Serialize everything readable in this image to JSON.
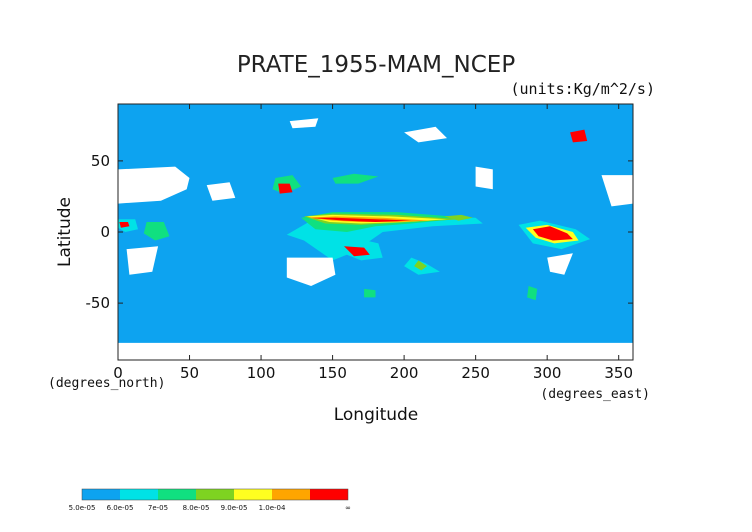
{
  "chart_data": {
    "type": "heatmap",
    "title": "PRATE_1955-MAM_NCEP",
    "units": "(units:Kg/m^2/s)",
    "xlabel": "Longitude",
    "ylabel": "Latitude",
    "x_units_note": "(degrees_east)",
    "y_units_note": "(degrees_north)",
    "xlim": [
      0,
      360
    ],
    "ylim": [
      -90,
      90
    ],
    "x_ticks": [
      0,
      50,
      100,
      150,
      200,
      250,
      300,
      350
    ],
    "y_ticks": [
      50,
      0,
      -50
    ],
    "grid": false,
    "background_color": "#ffffff",
    "levels": [
      {
        "label": "5.0e-05",
        "color": "#0da3f0"
      },
      {
        "label": "6.0e-05",
        "color": "#00e2e6"
      },
      {
        "label": "7e-05",
        "color": "#10e080"
      },
      {
        "label": "8.0e-05",
        "color": "#7ed321"
      },
      {
        "label": "9.0e-05",
        "color": "#ffff20"
      },
      {
        "label": "1.0e-04",
        "color": "#ffa500"
      },
      {
        "label": "∞",
        "color": "#ff0000"
      }
    ],
    "regions": [
      {
        "level": 0,
        "polygon": [
          [
            0,
            90
          ],
          [
            360,
            90
          ],
          [
            360,
            -90
          ],
          [
            0,
            -90
          ]
        ]
      },
      {
        "level": 1,
        "polygon": [
          [
            118,
            -2
          ],
          [
            135,
            8
          ],
          [
            160,
            10
          ],
          [
            200,
            12
          ],
          [
            250,
            10
          ],
          [
            255,
            6
          ],
          [
            220,
            4
          ],
          [
            185,
            0
          ],
          [
            165,
            -14
          ],
          [
            150,
            -20
          ],
          [
            130,
            -6
          ]
        ]
      },
      {
        "level": 2,
        "polygon": [
          [
            128,
            10
          ],
          [
            150,
            14
          ],
          [
            195,
            14
          ],
          [
            245,
            10
          ],
          [
            205,
            6
          ],
          [
            180,
            4
          ],
          [
            160,
            0
          ],
          [
            138,
            2
          ]
        ]
      },
      {
        "level": 3,
        "polygon": [
          [
            130,
            11
          ],
          [
            150,
            13
          ],
          [
            195,
            12
          ],
          [
            240,
            9
          ],
          [
            205,
            7
          ],
          [
            170,
            5
          ],
          [
            145,
            6
          ]
        ]
      },
      {
        "level": 4,
        "polygon": [
          [
            132,
            11
          ],
          [
            150,
            12
          ],
          [
            190,
            11
          ],
          [
            230,
            9
          ],
          [
            200,
            7
          ],
          [
            170,
            6
          ],
          [
            148,
            7
          ]
        ]
      },
      {
        "level": 5,
        "polygon": [
          [
            133,
            10
          ],
          [
            152,
            11
          ],
          [
            185,
            10
          ],
          [
            218,
            8
          ],
          [
            195,
            7
          ],
          [
            168,
            7
          ],
          [
            150,
            8
          ]
        ]
      },
      {
        "level": 6,
        "polygon": [
          [
            134,
            10
          ],
          [
            152,
            10
          ],
          [
            180,
            9
          ],
          [
            205,
            8
          ],
          [
            180,
            7
          ],
          [
            158,
            8
          ]
        ]
      },
      {
        "level": 1,
        "polygon": [
          [
            148,
            -8
          ],
          [
            165,
            -4
          ],
          [
            182,
            -8
          ],
          [
            185,
            -18
          ],
          [
            170,
            -20
          ],
          [
            155,
            -14
          ]
        ]
      },
      {
        "level": 6,
        "polygon": [
          [
            158,
            -10
          ],
          [
            172,
            -11
          ],
          [
            176,
            -16
          ],
          [
            165,
            -17
          ]
        ]
      },
      {
        "level": 1,
        "polygon": [
          [
            205,
            -18
          ],
          [
            215,
            -22
          ],
          [
            225,
            -28
          ],
          [
            210,
            -30
          ],
          [
            200,
            -24
          ]
        ]
      },
      {
        "level": 3,
        "polygon": [
          [
            210,
            -20
          ],
          [
            216,
            -24
          ],
          [
            212,
            -27
          ],
          [
            207,
            -24
          ]
        ]
      },
      {
        "level": 1,
        "polygon": [
          [
            280,
            5
          ],
          [
            295,
            8
          ],
          [
            320,
            2
          ],
          [
            330,
            -5
          ],
          [
            310,
            -12
          ],
          [
            290,
            -8
          ]
        ]
      },
      {
        "level": 4,
        "polygon": [
          [
            285,
            3
          ],
          [
            300,
            5
          ],
          [
            318,
            0
          ],
          [
            322,
            -6
          ],
          [
            305,
            -8
          ],
          [
            292,
            -4
          ]
        ]
      },
      {
        "level": 6,
        "polygon": [
          [
            290,
            2
          ],
          [
            302,
            4
          ],
          [
            314,
            -1
          ],
          [
            318,
            -5
          ],
          [
            304,
            -6
          ],
          [
            294,
            -3
          ]
        ]
      },
      {
        "level": 1,
        "polygon": [
          [
            0,
            9
          ],
          [
            12,
            9
          ],
          [
            14,
            2
          ],
          [
            5,
            0
          ],
          [
            0,
            3
          ]
        ]
      },
      {
        "level": 6,
        "polygon": [
          [
            1,
            7
          ],
          [
            7,
            7
          ],
          [
            8,
            4
          ],
          [
            2,
            3
          ]
        ]
      },
      {
        "level": 2,
        "polygon": [
          [
            20,
            7
          ],
          [
            32,
            7
          ],
          [
            36,
            -3
          ],
          [
            26,
            -6
          ],
          [
            18,
            -1
          ]
        ]
      },
      {
        "level": 3,
        "polygon": [
          [
            228,
            11
          ],
          [
            240,
            12
          ],
          [
            248,
            10
          ],
          [
            238,
            8
          ]
        ]
      },
      {
        "level": 2,
        "polygon": [
          [
            150,
            38
          ],
          [
            165,
            41
          ],
          [
            182,
            39
          ],
          [
            168,
            34
          ],
          [
            152,
            34
          ]
        ]
      },
      {
        "level": 2,
        "polygon": [
          [
            110,
            38
          ],
          [
            122,
            40
          ],
          [
            128,
            32
          ],
          [
            116,
            27
          ],
          [
            108,
            30
          ]
        ]
      },
      {
        "level": 6,
        "polygon": [
          [
            112,
            34
          ],
          [
            120,
            34
          ],
          [
            122,
            28
          ],
          [
            113,
            27
          ]
        ]
      },
      {
        "level": 6,
        "polygon": [
          [
            316,
            70
          ],
          [
            326,
            72
          ],
          [
            328,
            64
          ],
          [
            318,
            63
          ]
        ]
      },
      {
        "level": 2,
        "polygon": [
          [
            287,
            -38
          ],
          [
            293,
            -40
          ],
          [
            292,
            -48
          ],
          [
            286,
            -46
          ]
        ]
      },
      {
        "level": 2,
        "polygon": [
          [
            172,
            -40
          ],
          [
            180,
            -41
          ],
          [
            180,
            -46
          ],
          [
            172,
            -46
          ]
        ]
      }
    ],
    "missing_regions": [
      {
        "polygon": [
          [
            0,
            44
          ],
          [
            40,
            46
          ],
          [
            50,
            38
          ],
          [
            48,
            30
          ],
          [
            30,
            22
          ],
          [
            0,
            20
          ]
        ]
      },
      {
        "polygon": [
          [
            62,
            33
          ],
          [
            78,
            35
          ],
          [
            82,
            24
          ],
          [
            66,
            22
          ]
        ]
      },
      {
        "polygon": [
          [
            250,
            46
          ],
          [
            262,
            44
          ],
          [
            262,
            30
          ],
          [
            250,
            32
          ]
        ]
      },
      {
        "polygon": [
          [
            338,
            40
          ],
          [
            360,
            40
          ],
          [
            360,
            20
          ],
          [
            345,
            18
          ]
        ]
      },
      {
        "polygon": [
          [
            118,
            -18
          ],
          [
            150,
            -18
          ],
          [
            152,
            -30
          ],
          [
            135,
            -38
          ],
          [
            118,
            -32
          ]
        ]
      },
      {
        "polygon": [
          [
            0,
            -78
          ],
          [
            360,
            -78
          ],
          [
            360,
            -90
          ],
          [
            0,
            -90
          ]
        ]
      },
      {
        "polygon": [
          [
            6,
            -12
          ],
          [
            28,
            -10
          ],
          [
            24,
            -28
          ],
          [
            8,
            -30
          ]
        ]
      },
      {
        "polygon": [
          [
            300,
            -18
          ],
          [
            318,
            -15
          ],
          [
            312,
            -30
          ],
          [
            302,
            -28
          ]
        ]
      },
      {
        "polygon": [
          [
            120,
            78
          ],
          [
            140,
            80
          ],
          [
            138,
            74
          ],
          [
            122,
            73
          ]
        ]
      },
      {
        "polygon": [
          [
            200,
            70
          ],
          [
            222,
            74
          ],
          [
            230,
            66
          ],
          [
            210,
            63
          ]
        ]
      }
    ]
  }
}
